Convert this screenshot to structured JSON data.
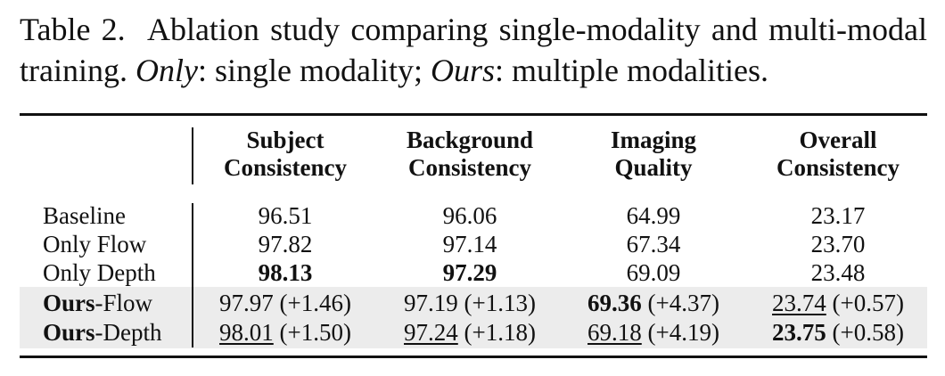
{
  "caption": {
    "label": "Table 2.",
    "text": "Ablation study comparing single-modality and multi-modal training.",
    "only": "Only",
    "only_text": ": single modality;",
    "ours": "Ours",
    "ours_text": ": multiple modalities."
  },
  "table": {
    "header": [
      [
        "Subject",
        "Consistency"
      ],
      [
        "Background",
        "Consistency"
      ],
      [
        "Imaging",
        "Quality"
      ],
      [
        "Overall",
        "Consistency"
      ]
    ],
    "rows": [
      {
        "label": "Baseline",
        "cells": [
          {
            "value": "96.51"
          },
          {
            "value": "96.06"
          },
          {
            "value": "64.99"
          },
          {
            "value": "23.17"
          }
        ]
      },
      {
        "label": "Only Flow",
        "cells": [
          {
            "value": "97.82"
          },
          {
            "value": "97.14"
          },
          {
            "value": "67.34"
          },
          {
            "value": "23.70"
          }
        ]
      },
      {
        "label": "Only Depth",
        "cells": [
          {
            "value": "98.13",
            "style": "bold"
          },
          {
            "value": "97.29",
            "style": "bold"
          },
          {
            "value": "69.09"
          },
          {
            "value": "23.48"
          }
        ]
      },
      {
        "label_bold": "Ours",
        "label": "-Flow",
        "shaded": true,
        "cells": [
          {
            "value": "97.97",
            "delta": "(+1.46)"
          },
          {
            "value": "97.19",
            "delta": "(+1.13)"
          },
          {
            "value": "69.36",
            "delta": "(+4.37)",
            "style": "bold"
          },
          {
            "value": "23.74",
            "delta": "(+0.57)",
            "style": "underline"
          }
        ]
      },
      {
        "label_bold": "Ours",
        "label": "-Depth",
        "shaded": true,
        "cells": [
          {
            "value": "98.01",
            "delta": "(+1.50)",
            "style": "underline"
          },
          {
            "value": "97.24",
            "delta": "(+1.18)",
            "style": "underline"
          },
          {
            "value": "69.18",
            "delta": "(+4.19)",
            "style": "underline"
          },
          {
            "value": "23.75",
            "delta": "(+0.58)",
            "style": "bold"
          }
        ]
      }
    ]
  }
}
